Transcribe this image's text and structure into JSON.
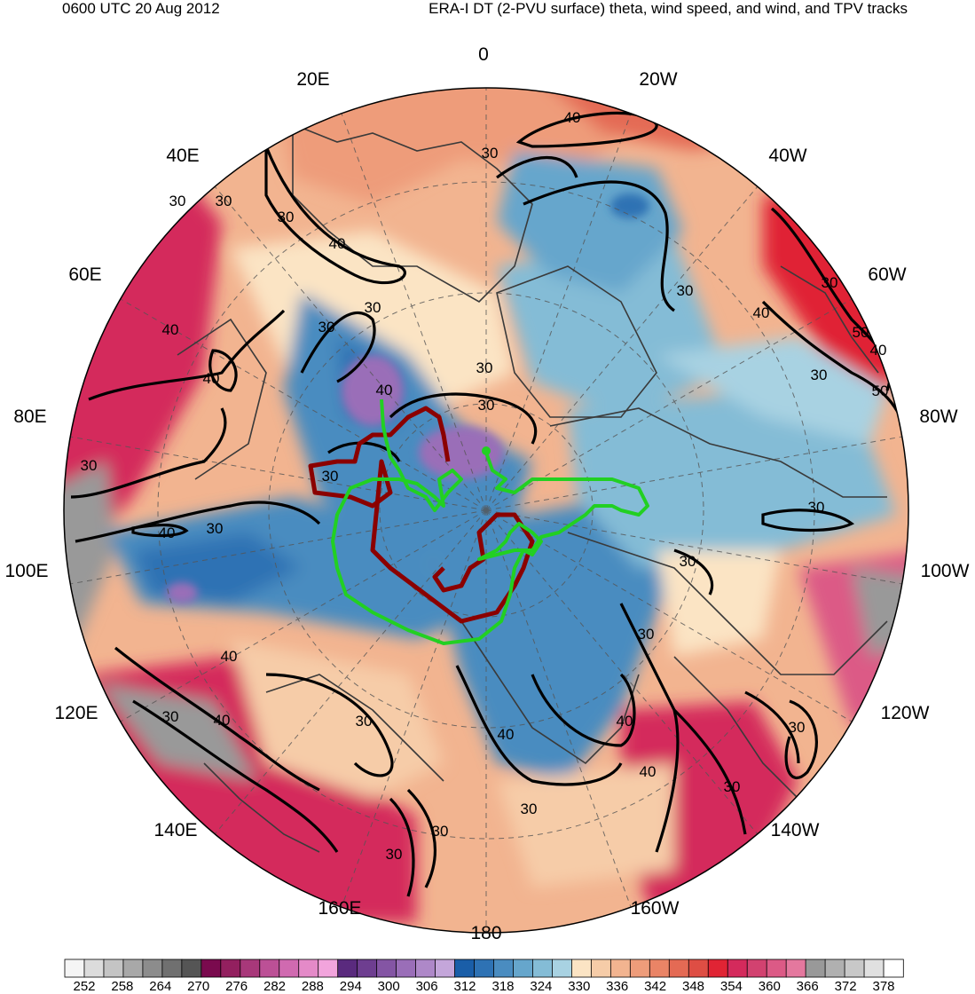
{
  "header": {
    "left": "0600 UTC 20 Aug 2012",
    "right": "ERA-I DT (2-PVU surface) theta, wind speed, and wind, and TPV tracks"
  },
  "map": {
    "projection": "north-polar-stereographic",
    "longitude_labels": [
      "0",
      "20W",
      "40W",
      "60W",
      "80W",
      "100W",
      "120W",
      "140W",
      "160W",
      "180",
      "160E",
      "140E",
      "120E",
      "100E",
      "80E",
      "60E",
      "40E",
      "20E"
    ],
    "wind_speed_contours": [
      "30",
      "40",
      "50"
    ],
    "track_colors": {
      "track_red": "#8b0000",
      "track_green": "#22d022"
    }
  },
  "colorbar": {
    "labels": [
      "252",
      "258",
      "264",
      "270",
      "276",
      "282",
      "288",
      "294",
      "300",
      "306",
      "312",
      "318",
      "324",
      "330",
      "336",
      "342",
      "348",
      "354",
      "360",
      "366",
      "372",
      "378"
    ],
    "colors": [
      "#f5f5f5",
      "#dcdcdc",
      "#c4c4c4",
      "#a8a8a8",
      "#8c8c8c",
      "#707070",
      "#555555",
      "#7a0a4e",
      "#93205f",
      "#a8387a",
      "#bc5096",
      "#d06ab0",
      "#e48ac8",
      "#f2a4dc",
      "#5a2a7e",
      "#6e3e90",
      "#8455a4",
      "#9a6eb8",
      "#ae88c8",
      "#c4a6da",
      "#1a5ea8",
      "#2e72b4",
      "#4a8cc0",
      "#66a6cc",
      "#84bcd6",
      "#a8d2e2",
      "#fbe4c4",
      "#f6cca8",
      "#f2b490",
      "#ee9c7a",
      "#ea8466",
      "#e46a54",
      "#de4e44",
      "#e02434",
      "#d42a5c",
      "#d24270",
      "#dc5a86",
      "#e4789e",
      "#999999",
      "#b0b0b0",
      "#c8c8c8",
      "#e0e0e0",
      "#ffffff"
    ]
  }
}
